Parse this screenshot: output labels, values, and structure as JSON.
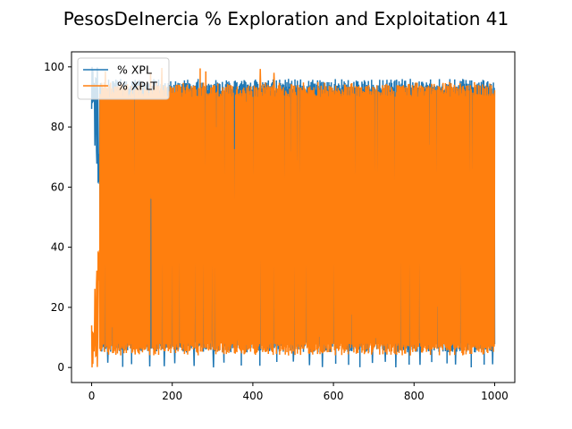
{
  "chart_data": {
    "type": "line",
    "title": "PesosDeInercia % Exploration and Exploitation 41",
    "xlabel": "",
    "ylabel": "",
    "xlim": [
      -50,
      1050
    ],
    "ylim": [
      -5,
      105
    ],
    "xticks": [
      0,
      200,
      400,
      600,
      800,
      1000
    ],
    "yticks": [
      0,
      20,
      40,
      60,
      80,
      100
    ],
    "grid": false,
    "legend_position": "top-left",
    "x_count": 1000,
    "series": [
      {
        "name": "% XPL",
        "color": "#1f77b4",
        "description": "oscillates rapidly between ~5 and ~95 across iterations 0–1000; starts near 100 at iteration 0 with a dip to ~62 around iteration 15",
        "typical_min": 5,
        "typical_max": 95,
        "values_sample": [
          {
            "x": 0,
            "y": 100
          },
          {
            "x": 10,
            "y": 80
          },
          {
            "x": 15,
            "y": 62
          },
          {
            "x": 20,
            "y": 95
          },
          {
            "x": 50,
            "y": 5
          },
          {
            "x": 100,
            "y": 94
          },
          {
            "x": 200,
            "y": 6
          },
          {
            "x": 400,
            "y": 95
          },
          {
            "x": 600,
            "y": 5
          },
          {
            "x": 800,
            "y": 95
          },
          {
            "x": 1000,
            "y": 95
          }
        ]
      },
      {
        "name": "% XPLT",
        "color": "#ff7f0e",
        "description": "complement of % XPL (100 - XPL); oscillates rapidly between ~5 and ~95",
        "typical_min": 5,
        "typical_max": 95,
        "values_sample": [
          {
            "x": 0,
            "y": 0
          },
          {
            "x": 10,
            "y": 20
          },
          {
            "x": 15,
            "y": 38
          },
          {
            "x": 20,
            "y": 5
          },
          {
            "x": 50,
            "y": 95
          },
          {
            "x": 100,
            "y": 6
          },
          {
            "x": 200,
            "y": 94
          },
          {
            "x": 400,
            "y": 5
          },
          {
            "x": 600,
            "y": 95
          },
          {
            "x": 800,
            "y": 5
          },
          {
            "x": 1000,
            "y": 5
          }
        ]
      }
    ]
  }
}
